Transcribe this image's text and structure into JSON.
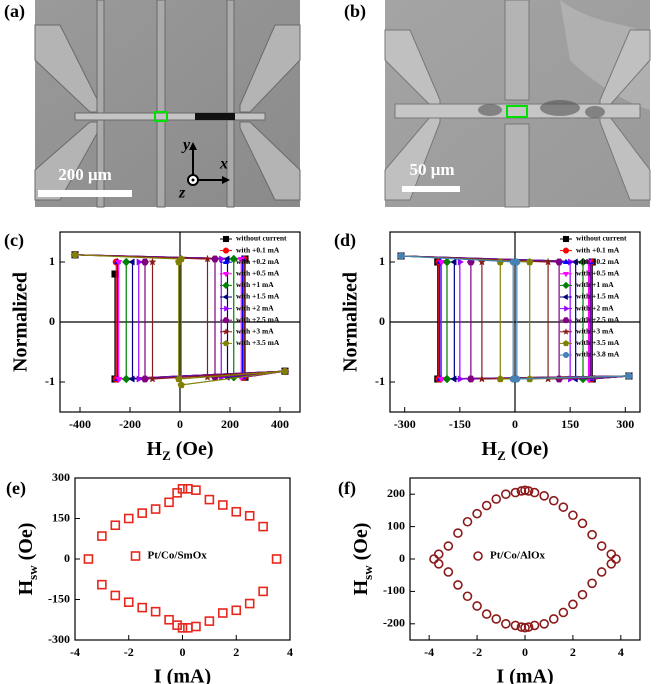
{
  "images": [
    {
      "panel_label": "(a)",
      "scale_bar": "200 μm",
      "axis_labels": [
        "y",
        "x",
        "z"
      ]
    },
    {
      "panel_label": "(b)",
      "scale_bar": "50 μm"
    }
  ],
  "chart_data": [
    {
      "type": "line",
      "panel_label": "(c)",
      "y_label": "Normalized",
      "x_label": {
        "text": "H",
        "sub": "Z",
        "unit": "(Oe)"
      },
      "xlim": [
        -480,
        480
      ],
      "xticks": [
        -400,
        -200,
        0,
        200,
        400
      ],
      "ylim": [
        -1.5,
        1.5
      ],
      "yticks": [
        -1,
        0,
        1
      ],
      "zero_lines": true,
      "legend": "upper right",
      "series": [
        {
          "name": "without current",
          "color": "#000000",
          "marker": "square",
          "x": [
            -420,
            260,
            260,
            420,
            -260,
            -260
          ],
          "values": [
            1.12,
            1.05,
            -0.92,
            -0.82,
            -0.95,
            0.8
          ]
        },
        {
          "name": "with +0.1 mA",
          "color": "#ff0000",
          "marker": "circle",
          "x": [
            -420,
            255,
            255,
            420,
            -255,
            -255
          ],
          "values": [
            1.12,
            1.05,
            -0.92,
            -0.82,
            -0.95,
            1.0
          ]
        },
        {
          "name": "with +0.2 mA",
          "color": "#0000ff",
          "marker": "triangle-up",
          "x": [
            -420,
            250,
            250,
            420,
            -250,
            -250
          ],
          "values": [
            1.12,
            1.05,
            -0.92,
            -0.82,
            -0.95,
            1.0
          ]
        },
        {
          "name": "with +0.5 mA",
          "color": "#ff00ff",
          "marker": "triangle-down",
          "x": [
            -420,
            245,
            245,
            420,
            -245,
            -245
          ],
          "values": [
            1.12,
            1.05,
            -0.92,
            -0.82,
            -0.95,
            1.0
          ]
        },
        {
          "name": "with +1 mA",
          "color": "#008000",
          "marker": "diamond",
          "x": [
            -420,
            215,
            215,
            420,
            -215,
            -215
          ],
          "values": [
            1.12,
            1.05,
            -0.92,
            -0.82,
            -0.95,
            1.0
          ]
        },
        {
          "name": "with +1.5 mA",
          "color": "#000080",
          "marker": "triangle-left",
          "x": [
            -420,
            190,
            190,
            420,
            -190,
            -190
          ],
          "values": [
            1.12,
            1.05,
            -0.92,
            -0.82,
            -0.95,
            1.0
          ]
        },
        {
          "name": "with +2 mA",
          "color": "#9900ff",
          "marker": "triangle-right",
          "x": [
            -420,
            165,
            165,
            420,
            -165,
            -165
          ],
          "values": [
            1.12,
            1.05,
            -0.92,
            -0.82,
            -0.95,
            1.0
          ]
        },
        {
          "name": "with +2.5 mA",
          "color": "#800080",
          "marker": "hexagon",
          "x": [
            -420,
            140,
            140,
            420,
            -140,
            -140
          ],
          "values": [
            1.12,
            1.05,
            -0.92,
            -0.82,
            -0.95,
            1.0
          ]
        },
        {
          "name": "with +3 mA",
          "color": "#8b1a1a",
          "marker": "star",
          "x": [
            -420,
            110,
            110,
            420,
            -110,
            -110
          ],
          "values": [
            1.12,
            1.05,
            -0.92,
            -0.82,
            -0.95,
            1.0
          ]
        },
        {
          "name": "with +3.5 mA",
          "color": "#808000",
          "marker": "pentagon",
          "x": [
            -420,
            5,
            5,
            420,
            -5,
            -5
          ],
          "values": [
            1.12,
            1.05,
            -1.05,
            -0.82,
            -0.95,
            1.0
          ]
        }
      ]
    },
    {
      "type": "line",
      "panel_label": "(d)",
      "y_label": "Normalized",
      "x_label": {
        "text": "H",
        "sub": "Z",
        "unit": "(Oe)"
      },
      "xlim": [
        -340,
        340
      ],
      "xticks": [
        -300,
        -150,
        0,
        150,
        300
      ],
      "ylim": [
        -1.5,
        1.5
      ],
      "yticks": [
        -1,
        0,
        1
      ],
      "zero_lines": true,
      "legend": "upper right",
      "series": [
        {
          "name": "without current",
          "color": "#000000",
          "marker": "square",
          "x": [
            -310,
            210,
            210,
            310,
            -210,
            -210
          ],
          "values": [
            1.1,
            1.0,
            -0.95,
            -0.9,
            -0.95,
            1.0
          ]
        },
        {
          "name": "with +0.1 mA",
          "color": "#ff0000",
          "marker": "circle",
          "x": [
            -310,
            207,
            207,
            310,
            -207,
            -207
          ],
          "values": [
            1.1,
            1.0,
            -0.95,
            -0.9,
            -0.95,
            1.0
          ]
        },
        {
          "name": "with +0.2 mA",
          "color": "#0000ff",
          "marker": "triangle-up",
          "x": [
            -310,
            204,
            204,
            310,
            -204,
            -204
          ],
          "values": [
            1.1,
            1.0,
            -0.95,
            -0.9,
            -0.95,
            1.0
          ]
        },
        {
          "name": "with +0.5 mA",
          "color": "#ff00ff",
          "marker": "triangle-down",
          "x": [
            -310,
            200,
            200,
            310,
            -200,
            -200
          ],
          "values": [
            1.1,
            1.0,
            -0.95,
            -0.9,
            -0.95,
            1.0
          ]
        },
        {
          "name": "with +1 mA",
          "color": "#008000",
          "marker": "diamond",
          "x": [
            -310,
            185,
            185,
            310,
            -185,
            -185
          ],
          "values": [
            1.1,
            1.0,
            -0.95,
            -0.9,
            -0.95,
            1.0
          ]
        },
        {
          "name": "with +1.5 mA",
          "color": "#000080",
          "marker": "triangle-left",
          "x": [
            -310,
            165,
            165,
            310,
            -165,
            -165
          ],
          "values": [
            1.1,
            1.0,
            -0.95,
            -0.9,
            -0.95,
            1.0
          ]
        },
        {
          "name": "with +2 mA",
          "color": "#9900ff",
          "marker": "triangle-right",
          "x": [
            -310,
            150,
            150,
            310,
            -150,
            -150
          ],
          "values": [
            1.1,
            1.0,
            -0.95,
            -0.9,
            -0.95,
            1.0
          ]
        },
        {
          "name": "with +2.5 mA",
          "color": "#800080",
          "marker": "hexagon",
          "x": [
            -310,
            120,
            120,
            310,
            -120,
            -120
          ],
          "values": [
            1.1,
            1.0,
            -0.95,
            -0.9,
            -0.95,
            1.0
          ]
        },
        {
          "name": "with +3 mA",
          "color": "#8b1a1a",
          "marker": "star",
          "x": [
            -310,
            90,
            90,
            310,
            -90,
            -90
          ],
          "values": [
            1.1,
            1.0,
            -0.95,
            -0.9,
            -0.95,
            1.0
          ]
        },
        {
          "name": "with +3.5 mA",
          "color": "#808000",
          "marker": "pentagon",
          "x": [
            -310,
            40,
            40,
            310,
            -40,
            -40
          ],
          "values": [
            1.1,
            1.0,
            -0.95,
            -0.9,
            -0.95,
            1.0
          ]
        },
        {
          "name": "with +3.8 mA",
          "color": "#4682b4",
          "marker": "circle",
          "x": [
            -310,
            5,
            5,
            310,
            -5,
            -5
          ],
          "values": [
            1.1,
            1.0,
            -0.95,
            -0.9,
            -0.95,
            1.0
          ]
        }
      ]
    },
    {
      "type": "scatter",
      "panel_label": "(e)",
      "y_label": {
        "text": "H",
        "sub": "sw",
        "unit": "(Oe)"
      },
      "x_label": "I (mA)",
      "xlim": [
        -4,
        4
      ],
      "xticks": [
        -4,
        -2,
        0,
        2,
        4
      ],
      "ylim": [
        -300,
        300
      ],
      "yticks": [
        -300,
        -150,
        0,
        150,
        300
      ],
      "legend": "center",
      "series": [
        {
          "name": "Pt/Co/SmOx",
          "color": "#e8261c",
          "marker": "square",
          "x": [
            -3.5,
            -3,
            -2.5,
            -2,
            -1.5,
            -1,
            -0.5,
            -0.2,
            0,
            0.2,
            0.5,
            1,
            1.5,
            2,
            2.5,
            3,
            3.5,
            -3,
            -2.5,
            -2,
            -1.5,
            -1,
            -0.5,
            -0.2,
            0,
            0.2,
            0.5,
            1,
            1.5,
            2,
            2.5,
            3
          ],
          "values": [
            0,
            85,
            125,
            150,
            170,
            185,
            210,
            245,
            260,
            260,
            255,
            220,
            200,
            175,
            160,
            120,
            0,
            -95,
            -135,
            -160,
            -180,
            -195,
            -225,
            -245,
            -255,
            -255,
            -250,
            -230,
            -200,
            -190,
            -165,
            -120
          ]
        }
      ]
    },
    {
      "type": "scatter",
      "panel_label": "(f)",
      "y_label": {
        "text": "H",
        "sub": "sw",
        "unit": "(Oe)"
      },
      "x_label": "I (mA)",
      "xlim": [
        -4.8,
        4.8
      ],
      "xticks": [
        -4,
        -2,
        0,
        2,
        4
      ],
      "ylim": [
        -250,
        250
      ],
      "yticks": [
        -200,
        -100,
        0,
        100,
        200
      ],
      "legend": "center",
      "series": [
        {
          "name": "Pt/Co/AlOx",
          "color": "#8b1a1a",
          "marker": "circle",
          "x": [
            -3.8,
            -3.6,
            -3.6,
            -3.2,
            -2.8,
            -2.4,
            -2,
            -1.6,
            -1.2,
            -0.8,
            -0.4,
            -0.15,
            0,
            0.15,
            0.4,
            0.8,
            1.2,
            1.6,
            2,
            2.4,
            2.8,
            3.2,
            3.6,
            3.6,
            3.8,
            -3.2,
            -2.8,
            -2.4,
            -2,
            -1.6,
            -1.2,
            -0.8,
            -0.4,
            -0.15,
            0,
            0.15,
            0.4,
            0.8,
            1.2,
            1.6,
            2,
            2.4,
            2.8,
            3.2
          ],
          "values": [
            0,
            15,
            -15,
            40,
            80,
            115,
            140,
            165,
            185,
            200,
            205,
            210,
            212,
            210,
            205,
            195,
            180,
            160,
            135,
            110,
            75,
            40,
            15,
            -15,
            0,
            -40,
            -80,
            -115,
            -145,
            -170,
            -185,
            -200,
            -205,
            -210,
            -212,
            -210,
            -205,
            -200,
            -185,
            -165,
            -140,
            -110,
            -75,
            -40
          ]
        }
      ]
    }
  ]
}
